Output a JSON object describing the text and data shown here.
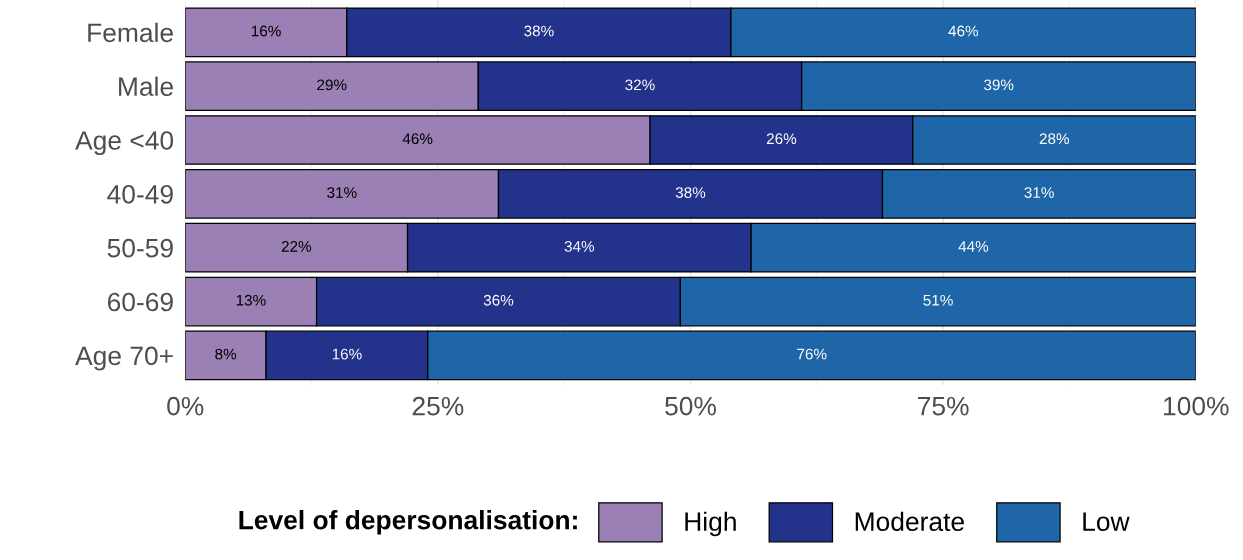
{
  "chart_data": {
    "type": "bar",
    "orientation": "horizontal",
    "stacked": true,
    "categories": [
      "Female",
      "Male",
      "Age <40",
      "40-49",
      "50-59",
      "60-69",
      "Age 70+"
    ],
    "series": [
      {
        "name": "High",
        "color": "#9b80b6",
        "values": [
          16,
          29,
          46,
          31,
          22,
          13,
          8
        ],
        "value_labels": [
          "16%",
          "29%",
          "46%",
          "31%",
          "22%",
          "13%",
          "8%"
        ]
      },
      {
        "name": "Moderate",
        "color": "#23338c",
        "values": [
          38,
          32,
          26,
          38,
          34,
          36,
          16
        ],
        "value_labels": [
          "38%",
          "32%",
          "26%",
          "38%",
          "34%",
          "36%",
          "16%"
        ]
      },
      {
        "name": "Low",
        "color": "#1f66a8",
        "values": [
          46,
          39,
          28,
          31,
          44,
          51,
          76
        ],
        "value_labels": [
          "46%",
          "39%",
          "28%",
          "31%",
          "44%",
          "51%",
          "76%"
        ]
      }
    ],
    "xlim": [
      0,
      100
    ],
    "xticks": [
      {
        "value": 0,
        "label": "0%"
      },
      {
        "value": 25,
        "label": "25%"
      },
      {
        "value": 50,
        "label": "50%"
      },
      {
        "value": 75,
        "label": "75%"
      },
      {
        "value": 100,
        "label": "100%"
      }
    ],
    "legend_title": "Level of depersonalisation:",
    "legend": "bottom",
    "grid": true
  }
}
